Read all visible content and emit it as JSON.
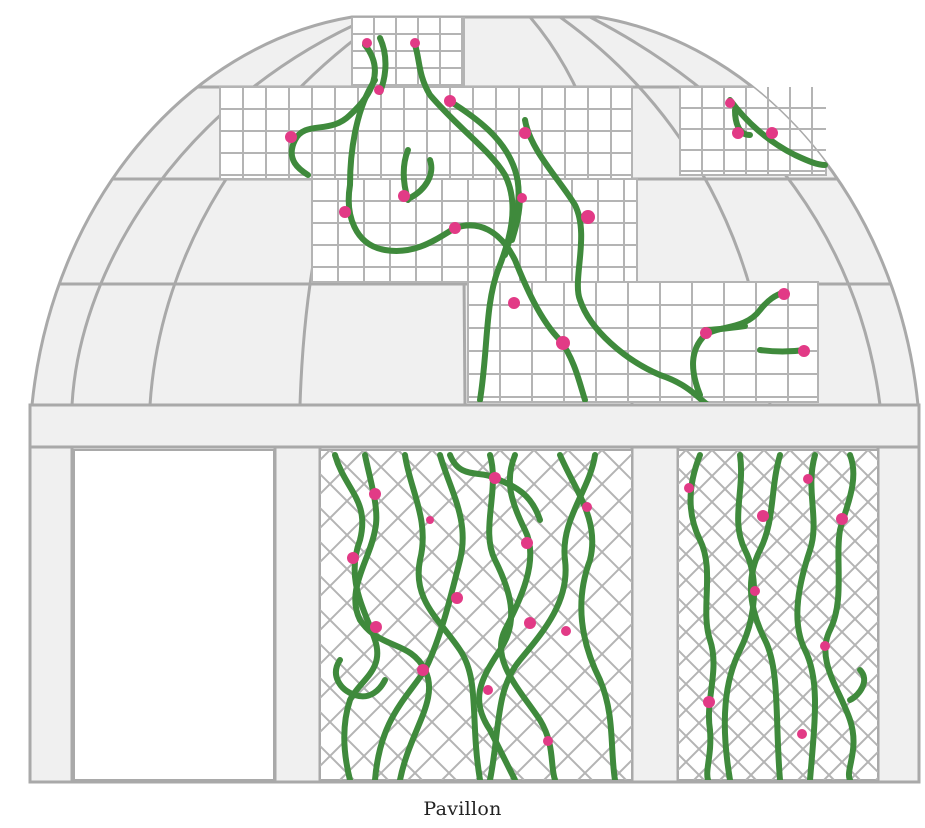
{
  "caption": "Pavillon",
  "colors": {
    "background": "#ffffff",
    "panel": "#f0f0f0",
    "frame": "#a9a9a9",
    "grid": "#b4b4b4",
    "vine": "#3f8a3c",
    "flower": "#e23a86"
  },
  "icons": [
    "dome-icon",
    "trellis-icon",
    "vine-icon",
    "flower-icon"
  ]
}
